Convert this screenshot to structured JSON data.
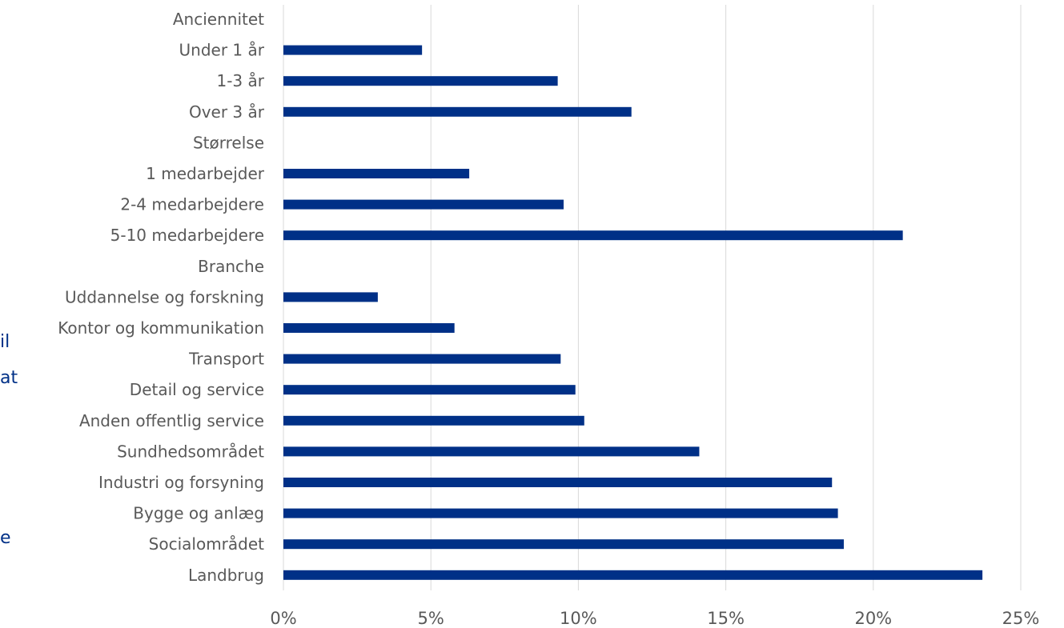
{
  "background_text": [
    "il",
    "at",
    "e"
  ],
  "colors": {
    "bar": "#003087",
    "grid": "#d9d9d9",
    "label": "#595959",
    "background_text": "#003087"
  },
  "chart_data": {
    "type": "bar",
    "orientation": "horizontal",
    "categories": [
      "Anciennitet",
      "Under 1 år",
      "1-3 år",
      "Over 3 år",
      "Størrelse",
      "1 medarbejder",
      "2-4 medarbejdere",
      "5-10 medarbejdere",
      "Branche",
      "Uddannelse og forskning",
      "Kontor og kommunikation",
      "Transport",
      "Detail og service",
      "Anden offentlig service",
      "Sundhedsområdet",
      "Industri og forsyning",
      "Bygge og anlæg",
      "Socialområdet",
      "Landbrug"
    ],
    "values": [
      null,
      4.7,
      9.3,
      11.8,
      null,
      6.3,
      9.5,
      21.0,
      null,
      3.2,
      5.8,
      9.4,
      9.9,
      10.2,
      14.1,
      18.6,
      18.8,
      19.0,
      23.7
    ],
    "xlim": [
      0,
      25
    ],
    "xticks": [
      0,
      5,
      10,
      15,
      20,
      25
    ],
    "tick_format": "percent",
    "grid": "vertical",
    "legend": "none",
    "title": "",
    "xlabel": "",
    "ylabel": ""
  }
}
